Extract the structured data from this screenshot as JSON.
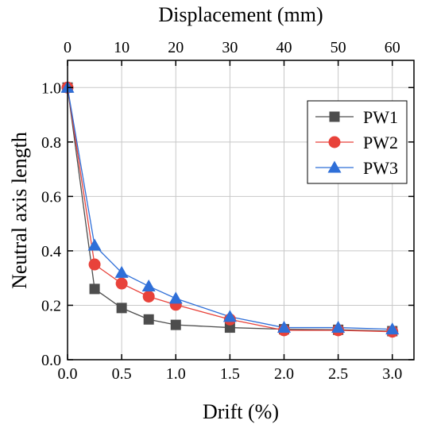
{
  "chart_data": {
    "type": "line",
    "title": "",
    "xlabel": "Drift (%)",
    "ylabel": "Neutral axis length",
    "x2label": "Displacement (mm)",
    "xlim": [
      0,
      3.2
    ],
    "ylim": [
      0,
      1.1
    ],
    "x2lim": [
      0,
      64
    ],
    "xticks": [
      0.0,
      0.5,
      1.0,
      1.5,
      2.0,
      2.5,
      3.0
    ],
    "xtick_labels": [
      "0.0",
      "0.5",
      "1.0",
      "1.5",
      "2.0",
      "2.5",
      "3.0"
    ],
    "yticks": [
      0.0,
      0.2,
      0.4,
      0.6,
      0.8,
      1.0
    ],
    "ytick_labels": [
      "0.0",
      "0.2",
      "0.4",
      "0.6",
      "0.8",
      "1.0"
    ],
    "x2ticks": [
      0,
      10,
      20,
      30,
      40,
      50,
      60
    ],
    "x2tick_labels": [
      "0",
      "10",
      "20",
      "30",
      "40",
      "50",
      "60"
    ],
    "grid": true,
    "legend_position": "top-right",
    "x": [
      0.0,
      0.25,
      0.5,
      0.75,
      1.0,
      1.5,
      2.0,
      2.5,
      3.0
    ],
    "series": [
      {
        "name": "PW1",
        "marker": "square",
        "color": "#4d4d4d",
        "values": [
          1.0,
          0.26,
          0.19,
          0.148,
          0.128,
          0.118,
          0.112,
          0.11,
          0.105
        ]
      },
      {
        "name": "PW2",
        "marker": "circle",
        "color": "#e8423a",
        "values": [
          1.0,
          0.35,
          0.28,
          0.232,
          0.202,
          0.148,
          0.108,
          0.108,
          0.103
        ]
      },
      {
        "name": "PW3",
        "marker": "triangle",
        "color": "#2f6fd8",
        "values": [
          1.0,
          0.42,
          0.32,
          0.27,
          0.225,
          0.158,
          0.118,
          0.118,
          0.112
        ]
      }
    ]
  }
}
